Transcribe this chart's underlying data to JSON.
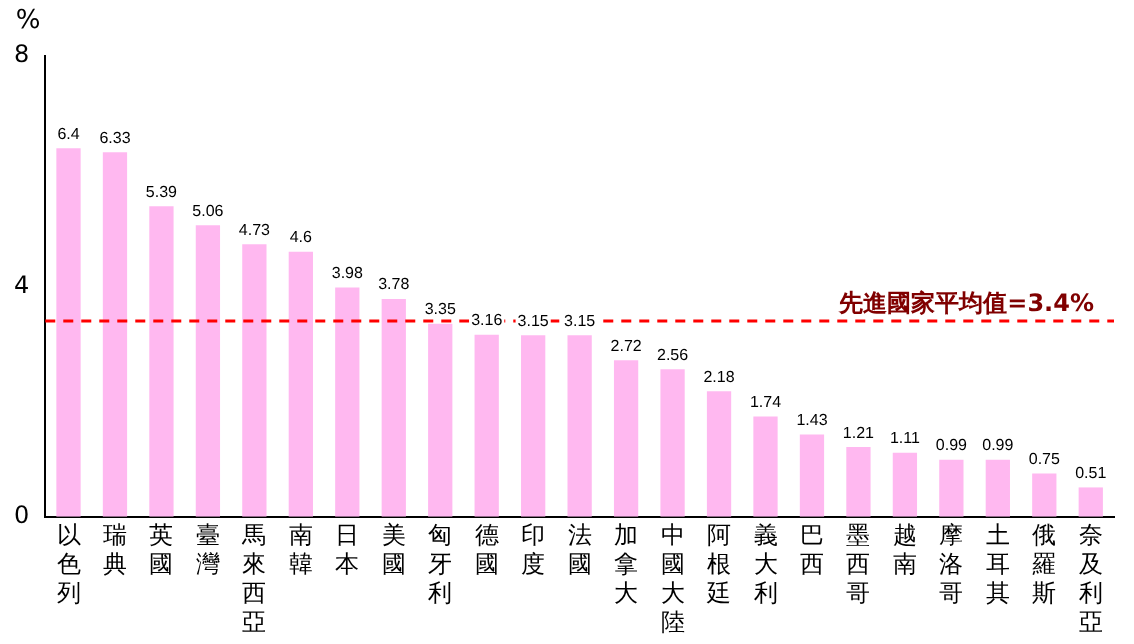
{
  "chart_data": {
    "type": "bar",
    "ylabel": "%",
    "categories": [
      "以色列",
      "瑞典",
      "英國",
      "臺灣",
      "馬來西亞",
      "南韓",
      "日本",
      "美國",
      "匈牙利",
      "德國",
      "印度",
      "法國",
      "加拿大",
      "中國大陸",
      "阿根廷",
      "義大利",
      "巴西",
      "墨西哥",
      "越南",
      "摩洛哥",
      "土耳其",
      "俄羅斯",
      "奈及利亞"
    ],
    "values": [
      6.4,
      6.33,
      5.39,
      5.06,
      4.73,
      4.6,
      3.98,
      3.78,
      3.35,
      3.16,
      3.15,
      3.15,
      2.72,
      2.56,
      2.18,
      1.74,
      1.43,
      1.21,
      1.11,
      0.99,
      0.99,
      0.75,
      0.51
    ],
    "color": "#ffb8f0",
    "ylim": [
      0,
      8
    ],
    "yticks": [
      0,
      4,
      8
    ],
    "grid": false,
    "data_labels": true,
    "ref_lines": [
      {
        "axis": "y",
        "value": 3.4,
        "label": "先進國家平均值=3.4%",
        "color": "#ff0000",
        "line_style": "dashed"
      }
    ]
  }
}
